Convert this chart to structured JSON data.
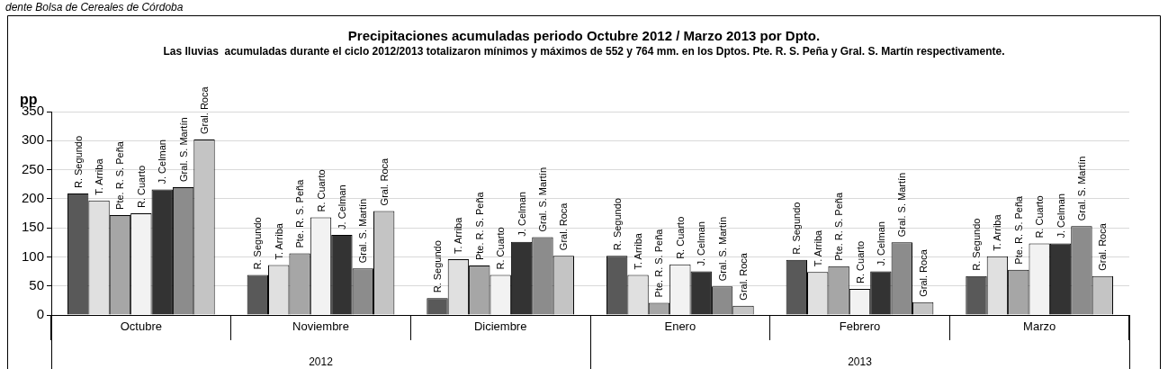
{
  "chart_data": {
    "type": "bar",
    "title": "Precipitaciones acumuladas periodo Octubre 2012 / Marzo 2013 por Dpto.",
    "subtitle": "Las lluvias  acumuladas durante el ciclo 2012/2013 totalizaron mínimos y máximos de 552 y 764 mm. en los Dptos. Pte. R. S. Peña y Gral. S. Martín respectivamente.",
    "ylabel": "pp",
    "categories": [
      "Octubre",
      "Noviembre",
      "Diciembre",
      "Enero",
      "Febrero",
      "Marzo"
    ],
    "series": [
      {
        "name": "R. Segundo",
        "color": "#595959",
        "values": [
          209,
          69,
          29,
          102,
          95,
          67
        ]
      },
      {
        "name": "T. Arriba",
        "color": "#e0e0e0",
        "values": [
          197,
          86,
          96,
          69,
          74,
          101
        ]
      },
      {
        "name": "Pte. R. S. Peña",
        "color": "#a6a6a6",
        "values": [
          172,
          106,
          85,
          21,
          84,
          78
        ]
      },
      {
        "name": "R. Cuarto",
        "color": "#f2f2f2",
        "values": [
          175,
          168,
          69,
          87,
          45,
          123
        ]
      },
      {
        "name": "J. Celman",
        "color": "#333333",
        "values": [
          216,
          138,
          126,
          75,
          75,
          123
        ]
      },
      {
        "name": "Gral. S. Martín",
        "color": "#8c8c8c",
        "values": [
          220,
          80,
          134,
          49,
          125,
          153
        ]
      },
      {
        "name": "Gral. Roca",
        "color": "#c4c4c4",
        "values": [
          302,
          179,
          102,
          16,
          22,
          67
        ]
      }
    ],
    "ylim": [
      0,
      350
    ],
    "yticks": [
      0,
      50,
      100,
      150,
      200,
      250,
      300,
      350
    ],
    "grid": "y",
    "legend": false,
    "annotations": [
      "dente Bolsa de Cereales de Córdoba",
      "2012",
      "2013"
    ]
  }
}
